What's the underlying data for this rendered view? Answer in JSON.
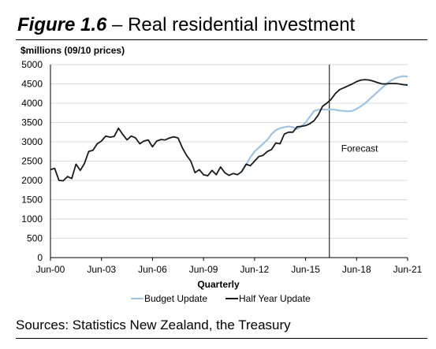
{
  "header": {
    "figure_label": "Figure 1.6",
    "title_rest": "– Real residential investment"
  },
  "sources": "Sources: Statistics New Zealand, the Treasury",
  "colors": {
    "budget": "#9dc3e6",
    "half_year": "#1a1a1a",
    "grid": "#d9d9d9",
    "axis": "#000000"
  },
  "chart_data": {
    "type": "line",
    "ylabel": "$millions (09/10 prices)",
    "xlabel": "Quarterly",
    "ylim": [
      0,
      5000
    ],
    "y_ticks": [
      0,
      500,
      1000,
      1500,
      2000,
      2500,
      3000,
      3500,
      4000,
      4500,
      5000
    ],
    "x_tick_labels": [
      "Jun-00",
      "Jun-03",
      "Jun-06",
      "Jun-09",
      "Jun-12",
      "Jun-15",
      "Jun-18",
      "Jun-21"
    ],
    "x_range": [
      2000.5,
      2021.5
    ],
    "grid": "horizontal",
    "legend_position": "bottom",
    "forecast_start": 2016.9,
    "annotation": "Forecast",
    "series": [
      {
        "name": "Budget Update",
        "points": [
          [
            2011.75,
            2250
          ],
          [
            2012.0,
            2400
          ],
          [
            2012.25,
            2600
          ],
          [
            2012.5,
            2750
          ],
          [
            2012.75,
            2850
          ],
          [
            2013.0,
            2950
          ],
          [
            2013.25,
            3050
          ],
          [
            2013.5,
            3200
          ],
          [
            2013.75,
            3300
          ],
          [
            2014.0,
            3350
          ],
          [
            2014.25,
            3380
          ],
          [
            2014.5,
            3400
          ],
          [
            2014.75,
            3380
          ],
          [
            2015.0,
            3330
          ],
          [
            2015.25,
            3400
          ],
          [
            2015.5,
            3500
          ],
          [
            2015.75,
            3650
          ],
          [
            2016.0,
            3800
          ],
          [
            2016.25,
            3830
          ],
          [
            2016.5,
            3840
          ],
          [
            2016.75,
            3830
          ],
          [
            2017.0,
            3840
          ],
          [
            2017.25,
            3830
          ],
          [
            2017.5,
            3810
          ],
          [
            2017.75,
            3800
          ],
          [
            2018.0,
            3790
          ],
          [
            2018.25,
            3800
          ],
          [
            2018.5,
            3850
          ],
          [
            2018.75,
            3920
          ],
          [
            2019.0,
            4000
          ],
          [
            2019.25,
            4100
          ],
          [
            2019.5,
            4200
          ],
          [
            2019.75,
            4300
          ],
          [
            2020.0,
            4400
          ],
          [
            2020.25,
            4500
          ],
          [
            2020.5,
            4580
          ],
          [
            2020.75,
            4640
          ],
          [
            2021.0,
            4680
          ],
          [
            2021.25,
            4700
          ],
          [
            2021.5,
            4690
          ]
        ]
      },
      {
        "name": "Half Year Update",
        "points": [
          [
            2000.5,
            2280
          ],
          [
            2000.75,
            2310
          ],
          [
            2001.0,
            2000
          ],
          [
            2001.25,
            1990
          ],
          [
            2001.5,
            2100
          ],
          [
            2001.75,
            2050
          ],
          [
            2002.0,
            2420
          ],
          [
            2002.25,
            2260
          ],
          [
            2002.5,
            2440
          ],
          [
            2002.75,
            2750
          ],
          [
            2003.0,
            2780
          ],
          [
            2003.25,
            2950
          ],
          [
            2003.5,
            3020
          ],
          [
            2003.75,
            3150
          ],
          [
            2004.0,
            3120
          ],
          [
            2004.25,
            3140
          ],
          [
            2004.5,
            3350
          ],
          [
            2004.75,
            3190
          ],
          [
            2005.0,
            3050
          ],
          [
            2005.25,
            3150
          ],
          [
            2005.5,
            3100
          ],
          [
            2005.75,
            2950
          ],
          [
            2006.0,
            3020
          ],
          [
            2006.25,
            3050
          ],
          [
            2006.5,
            2870
          ],
          [
            2006.75,
            3020
          ],
          [
            2007.0,
            3060
          ],
          [
            2007.25,
            3050
          ],
          [
            2007.5,
            3100
          ],
          [
            2007.75,
            3130
          ],
          [
            2008.0,
            3100
          ],
          [
            2008.25,
            2850
          ],
          [
            2008.5,
            2650
          ],
          [
            2008.75,
            2500
          ],
          [
            2009.0,
            2200
          ],
          [
            2009.25,
            2280
          ],
          [
            2009.5,
            2150
          ],
          [
            2009.75,
            2120
          ],
          [
            2010.0,
            2260
          ],
          [
            2010.25,
            2150
          ],
          [
            2010.5,
            2350
          ],
          [
            2010.75,
            2200
          ],
          [
            2011.0,
            2130
          ],
          [
            2011.25,
            2180
          ],
          [
            2011.5,
            2150
          ],
          [
            2011.75,
            2230
          ],
          [
            2012.0,
            2420
          ],
          [
            2012.25,
            2380
          ],
          [
            2012.5,
            2500
          ],
          [
            2012.75,
            2620
          ],
          [
            2013.0,
            2650
          ],
          [
            2013.25,
            2750
          ],
          [
            2013.5,
            2800
          ],
          [
            2013.75,
            2970
          ],
          [
            2014.0,
            2950
          ],
          [
            2014.25,
            3200
          ],
          [
            2014.5,
            3250
          ],
          [
            2014.75,
            3250
          ],
          [
            2015.0,
            3390
          ],
          [
            2015.25,
            3400
          ],
          [
            2015.5,
            3420
          ],
          [
            2015.75,
            3470
          ],
          [
            2016.0,
            3550
          ],
          [
            2016.25,
            3700
          ],
          [
            2016.5,
            3920
          ],
          [
            2016.75,
            4000
          ],
          [
            2017.0,
            4100
          ],
          [
            2017.25,
            4250
          ],
          [
            2017.5,
            4350
          ],
          [
            2017.75,
            4400
          ],
          [
            2018.0,
            4450
          ],
          [
            2018.25,
            4500
          ],
          [
            2018.5,
            4560
          ],
          [
            2018.75,
            4600
          ],
          [
            2019.0,
            4610
          ],
          [
            2019.25,
            4600
          ],
          [
            2019.5,
            4570
          ],
          [
            2019.75,
            4530
          ],
          [
            2020.0,
            4500
          ],
          [
            2020.25,
            4500
          ],
          [
            2020.5,
            4510
          ],
          [
            2020.75,
            4510
          ],
          [
            2021.0,
            4500
          ],
          [
            2021.25,
            4480
          ],
          [
            2021.5,
            4470
          ]
        ]
      }
    ]
  }
}
